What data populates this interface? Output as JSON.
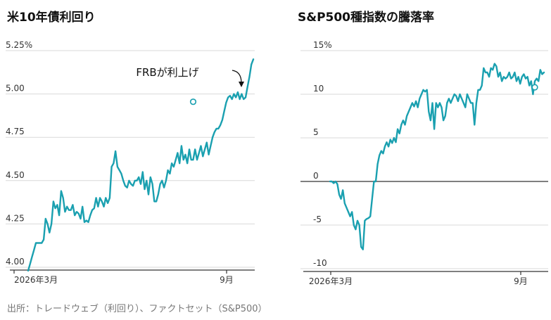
{
  "source": "出所：トレードウェブ（利回り）、ファクトセット（S&P500）",
  "chart_data": [
    {
      "type": "line",
      "title": "米10年債利回り",
      "xlabel": "",
      "ylabel": "",
      "x_tick_labels": [
        "2026年3月",
        "9月"
      ],
      "y_ticks": [
        4.0,
        4.25,
        4.5,
        4.75,
        5.0,
        5.25
      ],
      "y_tick_labels": [
        "4.00",
        "4.25",
        "4.50",
        "4.75",
        "5.00",
        "5.25%"
      ],
      "ylim": [
        4.0,
        5.25
      ],
      "grid": true,
      "annotation": {
        "text": "FRBが利上げ",
        "x_index": 85,
        "y": 4.955
      },
      "color": "#1aa0b0",
      "values": [
        3.98,
        4.02,
        4.06,
        4.1,
        4.14,
        4.14,
        4.14,
        4.14,
        4.16,
        4.28,
        4.25,
        4.2,
        4.25,
        4.38,
        4.34,
        4.36,
        4.3,
        4.44,
        4.4,
        4.32,
        4.35,
        4.33,
        4.33,
        4.36,
        4.3,
        4.32,
        4.31,
        4.28,
        4.35,
        4.26,
        4.27,
        4.26,
        4.3,
        4.33,
        4.34,
        4.4,
        4.35,
        4.4,
        4.38,
        4.35,
        4.4,
        4.37,
        4.4,
        4.58,
        4.6,
        4.67,
        4.58,
        4.56,
        4.54,
        4.5,
        4.47,
        4.46,
        4.5,
        4.48,
        4.47,
        4.5,
        4.5,
        4.52,
        4.48,
        4.55,
        4.45,
        4.5,
        4.42,
        4.52,
        4.48,
        4.38,
        4.38,
        4.42,
        4.48,
        4.5,
        4.46,
        4.5,
        4.56,
        4.54,
        4.6,
        4.58,
        4.62,
        4.66,
        4.6,
        4.7,
        4.62,
        4.65,
        4.6,
        4.68,
        4.62,
        4.62,
        4.68,
        4.62,
        4.66,
        4.7,
        4.64,
        4.68,
        4.72,
        4.65,
        4.7,
        4.75,
        4.78,
        4.8,
        4.8,
        4.82,
        4.85,
        4.9,
        4.95,
        4.98,
        4.99,
        4.97,
        5.0,
        4.98,
        5.01,
        4.97,
        5.0,
        4.97,
        4.98,
        5.04,
        5.1,
        5.17,
        5.2
      ]
    },
    {
      "type": "line",
      "title": "S&P500種指数の騰落率",
      "xlabel": "",
      "ylabel": "",
      "x_tick_labels": [
        "2026年3月",
        "9月"
      ],
      "y_ticks": [
        -10,
        -5,
        0,
        5,
        10,
        15
      ],
      "y_tick_labels": [
        "-10",
        "-5",
        "0",
        "5",
        "10",
        "15%"
      ],
      "ylim": [
        -10,
        15
      ],
      "grid": true,
      "baseline": 0,
      "color": "#1aa0b0",
      "values": [
        0,
        0,
        -0.2,
        0,
        -0.3,
        -1.5,
        -2,
        -1,
        -2.5,
        -3,
        -3.5,
        -4,
        -3.5,
        -5,
        -5.5,
        -4.5,
        -5,
        -7.5,
        -7.8,
        -4.5,
        -4.3,
        -4.2,
        -4,
        -2,
        0,
        0,
        2,
        3,
        3.5,
        3.2,
        4,
        4.5,
        4,
        4.8,
        4.4,
        5,
        4.5,
        6,
        5.5,
        6.5,
        7,
        6.5,
        7.5,
        8,
        8.5,
        9,
        8.6,
        9.2,
        8.5,
        9.5,
        10,
        10.5,
        10.3,
        10.5,
        8,
        7,
        9,
        6,
        9,
        8.5,
        9,
        8.5,
        7,
        7.5,
        9,
        9.5,
        9,
        9.5,
        10,
        9.8,
        9.2,
        10,
        9.5,
        9,
        8.5,
        10,
        9.5,
        9,
        9,
        6.5,
        9,
        10.5,
        10.5,
        11,
        13,
        12.5,
        12.5,
        12,
        13,
        12.8,
        13.5,
        13.2,
        12,
        12.5,
        11.5,
        12,
        11.8,
        12,
        12.5,
        11.8,
        12,
        12.5,
        11.5,
        12,
        11.2,
        12,
        12.3,
        11.8,
        12,
        11,
        11.5,
        10,
        11.5,
        11.8,
        11.5,
        12.8,
        12.3,
        12.5
      ]
    }
  ]
}
